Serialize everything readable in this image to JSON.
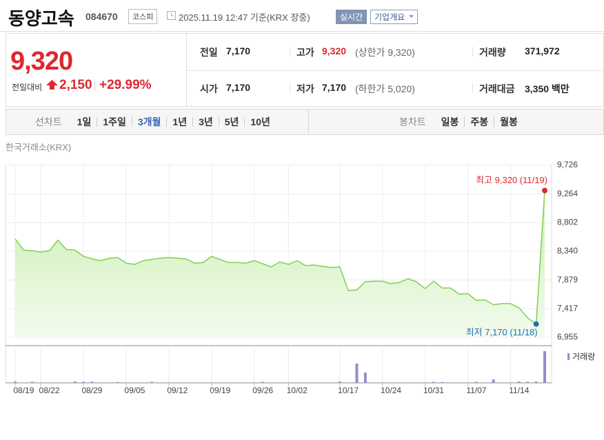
{
  "header": {
    "title": "동양고속",
    "code": "084670",
    "market": "코스피",
    "timestamp": "2025.11.19 12:47 기준(KRX 장중)",
    "realtime_button": "실시간",
    "company_button": "기업개요"
  },
  "quote": {
    "price": "9,320",
    "change_label": "전일대비",
    "change": "2,150",
    "change_rate": "+29.99%",
    "rows": [
      [
        {
          "label": "전일",
          "value": "7,170"
        },
        {
          "label": "고가",
          "value": "9,320",
          "note": "(상한가 9,320)"
        },
        {
          "label": "거래량",
          "value": "371,972"
        }
      ],
      [
        {
          "label": "시가",
          "value": "7,170"
        },
        {
          "label": "저가",
          "value": "7,170",
          "note": "(하한가 5,020)"
        },
        {
          "label": "거래대금",
          "value": "3,350 백만"
        }
      ]
    ]
  },
  "tabs": {
    "line_label": "선차트",
    "line_periods": [
      "1일",
      "1주일",
      "3개월",
      "1년",
      "3년",
      "5년",
      "10년"
    ],
    "selected_index": 2,
    "candle_label": "봉차트",
    "candle_periods": [
      "일봉",
      "주봉",
      "월봉"
    ]
  },
  "chart_data": {
    "type": "line",
    "source": "한국거래소(KRX)",
    "categories": [
      null,
      "08/19",
      null,
      null,
      "08/22",
      null,
      null,
      null,
      null,
      "08/29",
      null,
      null,
      null,
      null,
      "09/05",
      null,
      null,
      null,
      null,
      "09/12",
      null,
      null,
      null,
      null,
      "09/19",
      null,
      null,
      null,
      null,
      "09/26",
      null,
      null,
      null,
      "10/02",
      null,
      null,
      null,
      null,
      null,
      "10/17",
      null,
      null,
      null,
      null,
      "10/24",
      null,
      null,
      null,
      null,
      "10/31",
      null,
      null,
      null,
      null,
      "11/07",
      null,
      null,
      null,
      null,
      "11/14",
      null,
      null,
      null
    ],
    "values": [
      8540,
      8360,
      8350,
      8330,
      8350,
      8520,
      8370,
      8360,
      8260,
      8220,
      8190,
      8230,
      8240,
      8150,
      8130,
      8190,
      8210,
      8230,
      8240,
      8230,
      8220,
      8150,
      8160,
      8260,
      8210,
      8160,
      8160,
      8150,
      8190,
      8140,
      8090,
      8170,
      8130,
      8190,
      8110,
      8120,
      8100,
      8080,
      8090,
      7710,
      7720,
      7850,
      7860,
      7860,
      7820,
      7840,
      7900,
      7850,
      7740,
      7860,
      7750,
      7750,
      7650,
      7660,
      7550,
      7560,
      7480,
      7500,
      7500,
      7430,
      7270,
      7170,
      9320
    ],
    "color": "#7fd04f",
    "ylim": [
      6955,
      9726
    ],
    "yticks": [
      {
        "value": 9726,
        "label": "9,726"
      },
      {
        "value": 9264,
        "label": "9,264"
      },
      {
        "value": 8802,
        "label": "8,802"
      },
      {
        "value": 8340,
        "label": "8,340"
      },
      {
        "value": 7879,
        "label": "7,879"
      },
      {
        "value": 7417,
        "label": "7,417"
      },
      {
        "value": 6955,
        "label": "6,955"
      }
    ],
    "grid": true,
    "high_label": "최고 9,320 (11/19)",
    "high_color": "#e0262e",
    "low_label": "최저 7,170 (11/18)",
    "low_color": "#1e6fbf",
    "volume": {
      "name": "거래량",
      "color": "#9b8bc9",
      "values": [
        15000,
        2000,
        12000,
        2000,
        2000,
        2000,
        2000,
        15000,
        12000,
        14000,
        2000,
        2000,
        10000,
        2000,
        2000,
        2000,
        12000,
        2000,
        2000,
        2000,
        2000,
        2000,
        2000,
        2000,
        2000,
        2000,
        2000,
        2000,
        2000,
        12000,
        2000,
        2000,
        2000,
        2000,
        2000,
        2000,
        2000,
        2000,
        14000,
        2000,
        226000,
        121000,
        2000,
        2000,
        2000,
        2000,
        2000,
        2000,
        2000,
        12000,
        10000,
        2000,
        2000,
        2000,
        12000,
        2000,
        40000,
        2000,
        2000,
        14000,
        12000,
        15000,
        371972
      ]
    }
  }
}
